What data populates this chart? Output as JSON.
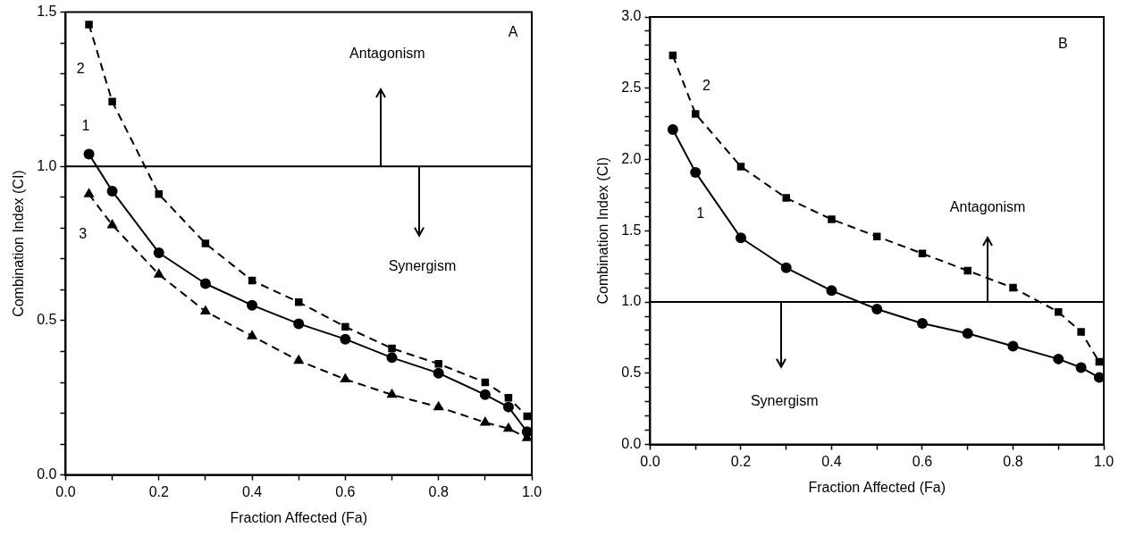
{
  "chart_data": [
    {
      "type": "line",
      "xlabel": "Fraction Affected (Fa)",
      "ylabel": "Combination Index (CI)",
      "x": [
        0.05,
        0.1,
        0.2,
        0.3,
        0.4,
        0.5,
        0.6,
        0.7,
        0.8,
        0.9,
        0.95,
        0.99
      ],
      "series": [
        {
          "name": "2",
          "color": "#000000",
          "marker": "square",
          "line_style": "dashed",
          "values": [
            1.46,
            1.21,
            0.91,
            0.75,
            0.63,
            0.56,
            0.48,
            0.41,
            0.36,
            0.3,
            0.25,
            0.19
          ]
        },
        {
          "name": "1",
          "color": "#000000",
          "marker": "circle",
          "line_style": "solid",
          "values": [
            1.04,
            0.92,
            0.72,
            0.62,
            0.55,
            0.49,
            0.44,
            0.38,
            0.33,
            0.26,
            0.22,
            0.14
          ]
        },
        {
          "name": "3",
          "color": "#000000",
          "marker": "triangle",
          "line_style": "dashed",
          "values": [
            0.91,
            0.81,
            0.65,
            0.53,
            0.45,
            0.37,
            0.31,
            0.26,
            0.22,
            0.17,
            0.15,
            0.12
          ]
        }
      ],
      "xlim": [
        0,
        1
      ],
      "xticks": [
        {
          "value": 0,
          "label": "0.0"
        },
        {
          "value": 0.1,
          "label": null
        },
        0.2,
        {
          "value": 0.3,
          "label": null
        },
        0.4,
        {
          "value": 0.5,
          "label": null
        },
        0.6,
        {
          "value": 0.7,
          "label": null
        },
        0.8,
        {
          "value": 0.9,
          "label": null
        },
        {
          "value": 1,
          "label": "1.0"
        }
      ],
      "ylim": [
        0,
        1.5
      ],
      "yticks": [
        {
          "value": 0,
          "label": "0.0"
        },
        {
          "value": 0.1,
          "label": null
        },
        {
          "value": 0.2,
          "label": null
        },
        {
          "value": 0.3,
          "label": null
        },
        {
          "value": 0.4,
          "label": null
        },
        {
          "value": 0.5,
          "label": "0.5"
        },
        {
          "value": 0.6,
          "label": null
        },
        {
          "value": 0.7,
          "label": null
        },
        {
          "value": 0.8,
          "label": null
        },
        {
          "value": 0.9,
          "label": null
        },
        {
          "value": 1,
          "label": "1.0"
        },
        {
          "value": 1.1,
          "label": null
        },
        {
          "value": 1.2,
          "label": null
        },
        {
          "value": 1.3,
          "label": null
        },
        {
          "value": 1.4,
          "label": null
        },
        {
          "value": 1.5,
          "label": "1.5"
        }
      ],
      "ref_lines": [
        {
          "axis": "y",
          "value": 1,
          "color": "#000000",
          "line_style": "solid"
        }
      ],
      "annotations": [
        "A",
        "Antagonism",
        "Synergism"
      ],
      "grid": false,
      "legend": false
    },
    {
      "type": "line",
      "xlabel": "Fraction Affected (Fa)",
      "ylabel": "Combination Index (CI)",
      "x": [
        0.05,
        0.1,
        0.2,
        0.3,
        0.4,
        0.5,
        0.6,
        0.7,
        0.8,
        0.9,
        0.95,
        0.99
      ],
      "series": [
        {
          "name": "2",
          "color": "#000000",
          "marker": "square",
          "line_style": "dashed",
          "values": [
            2.73,
            2.32,
            1.95,
            1.73,
            1.58,
            1.46,
            1.34,
            1.22,
            1.1,
            0.93,
            0.79,
            0.58
          ]
        },
        {
          "name": "1",
          "color": "#000000",
          "marker": "circle",
          "line_style": "solid",
          "values": [
            2.21,
            1.91,
            1.45,
            1.24,
            1.08,
            0.95,
            0.85,
            0.78,
            0.69,
            0.6,
            0.54,
            0.47
          ]
        }
      ],
      "xlim": [
        0,
        1
      ],
      "xticks": [
        {
          "value": 0,
          "label": "0.0"
        },
        {
          "value": 0.1,
          "label": null
        },
        0.2,
        {
          "value": 0.3,
          "label": null
        },
        0.4,
        {
          "value": 0.5,
          "label": null
        },
        0.6,
        {
          "value": 0.7,
          "label": null
        },
        0.8,
        {
          "value": 0.9,
          "label": null
        },
        {
          "value": 1,
          "label": "1.0"
        }
      ],
      "ylim": [
        0,
        3
      ],
      "yticks": [
        {
          "value": 0,
          "label": "0.0"
        },
        {
          "value": 0.1,
          "label": null
        },
        {
          "value": 0.2,
          "label": null
        },
        {
          "value": 0.3,
          "label": null
        },
        {
          "value": 0.4,
          "label": null
        },
        {
          "value": 0.5,
          "label": "0.5"
        },
        {
          "value": 0.6,
          "label": null
        },
        {
          "value": 0.7,
          "label": null
        },
        {
          "value": 0.8,
          "label": null
        },
        {
          "value": 0.9,
          "label": null
        },
        {
          "value": 1,
          "label": "1.0"
        },
        {
          "value": 1.1,
          "label": null
        },
        {
          "value": 1.2,
          "label": null
        },
        {
          "value": 1.3,
          "label": null
        },
        {
          "value": 1.4,
          "label": null
        },
        {
          "value": 1.5,
          "label": "1.5"
        },
        {
          "value": 1.6,
          "label": null
        },
        {
          "value": 1.7,
          "label": null
        },
        {
          "value": 1.8,
          "label": null
        },
        {
          "value": 1.9,
          "label": null
        },
        {
          "value": 2,
          "label": "2.0"
        },
        {
          "value": 2.1,
          "label": null
        },
        {
          "value": 2.2,
          "label": null
        },
        {
          "value": 2.3,
          "label": null
        },
        {
          "value": 2.4,
          "label": null
        },
        {
          "value": 2.5,
          "label": "2.5"
        },
        {
          "value": 2.6,
          "label": null
        },
        {
          "value": 2.7,
          "label": null
        },
        {
          "value": 2.8,
          "label": null
        },
        {
          "value": 2.9,
          "label": null
        },
        {
          "value": 3,
          "label": "3.0"
        }
      ],
      "ref_lines": [
        {
          "axis": "y",
          "value": 1,
          "color": "#000000",
          "line_style": "solid"
        }
      ],
      "annotations": [
        "B",
        "Antagonism",
        "Synergism"
      ],
      "grid": false,
      "legend": false
    }
  ]
}
